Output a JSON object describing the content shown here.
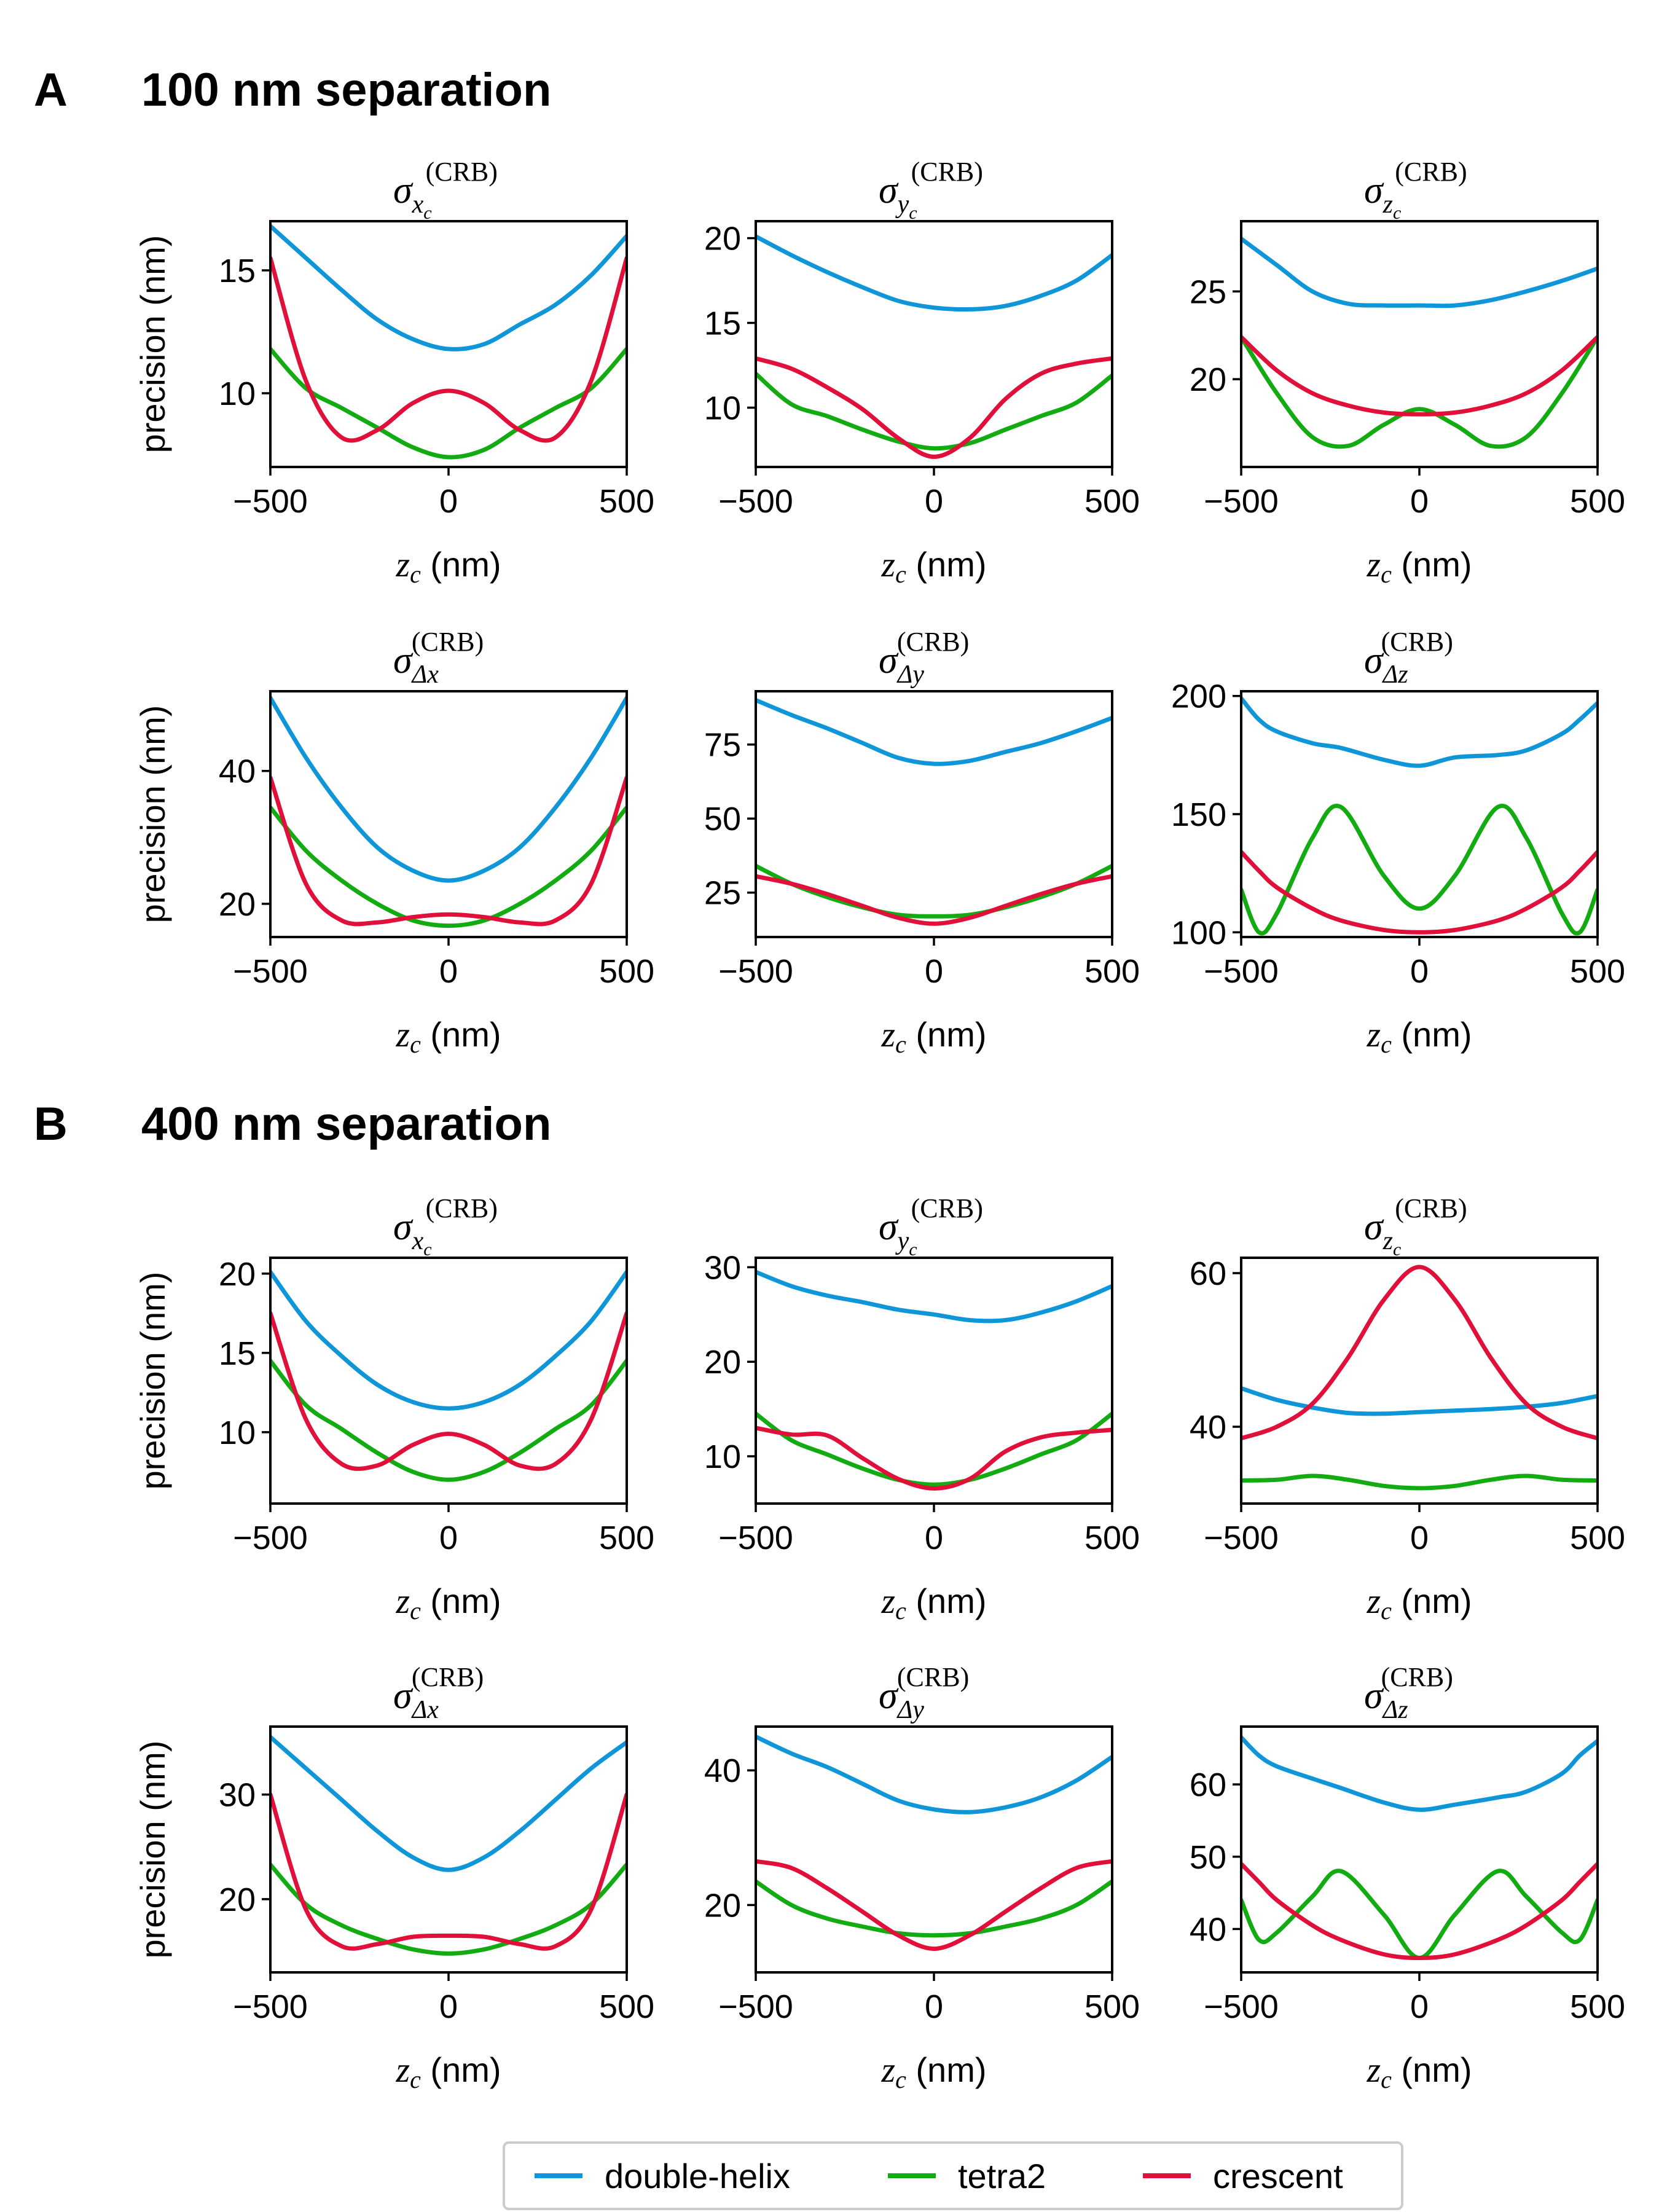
{
  "panels": [
    {
      "letter": "A",
      "title": "100 nm separation"
    },
    {
      "letter": "B",
      "title": "400 nm separation"
    }
  ],
  "axis_text": {
    "ylabel": "precision (nm)",
    "xlabel_var": "z",
    "xlabel_sub": "c",
    "xlabel_unit": " (nm)",
    "title_sup": "(CRB)",
    "title_symbol": "σ"
  },
  "legend": {
    "placement": "bottom-center",
    "entries": [
      {
        "label": "double-helix",
        "color": "#0f96d8"
      },
      {
        "label": "tetra2",
        "color": "#12ab12"
      },
      {
        "label": "crescent",
        "color": "#e0103a"
      }
    ]
  },
  "chart_data": [
    {
      "type": "line",
      "panel": "A",
      "title_sub": "x",
      "title_sub2": "c",
      "xlim": [
        -500,
        500
      ],
      "xticks": [
        -500,
        0,
        500
      ],
      "ylim": [
        7,
        17
      ],
      "yticks": [
        10,
        15
      ],
      "x": [
        -500,
        -400,
        -300,
        -200,
        -100,
        0,
        100,
        200,
        300,
        400,
        500
      ],
      "series": [
        {
          "name": "double-helix",
          "values": [
            16.8,
            15.5,
            14.2,
            13.0,
            12.2,
            11.8,
            12.0,
            12.8,
            13.6,
            14.8,
            16.4
          ]
        },
        {
          "name": "tetra2",
          "values": [
            11.8,
            10.2,
            9.4,
            8.6,
            7.8,
            7.4,
            7.7,
            8.6,
            9.4,
            10.2,
            11.8
          ]
        },
        {
          "name": "crescent",
          "values": [
            15.5,
            10.5,
            8.2,
            8.5,
            9.6,
            10.1,
            9.6,
            8.5,
            8.2,
            10.5,
            15.5
          ]
        }
      ]
    },
    {
      "type": "line",
      "panel": "A",
      "title_sub": "y",
      "title_sub2": "c",
      "xlim": [
        -500,
        500
      ],
      "xticks": [
        -500,
        0,
        500
      ],
      "ylim": [
        6.5,
        21
      ],
      "yticks": [
        10,
        15,
        20
      ],
      "x": [
        -500,
        -400,
        -300,
        -200,
        -100,
        0,
        100,
        200,
        300,
        400,
        500
      ],
      "series": [
        {
          "name": "double-helix",
          "values": [
            20.1,
            19.0,
            18.0,
            17.1,
            16.3,
            15.9,
            15.8,
            16.0,
            16.6,
            17.5,
            19.0
          ]
        },
        {
          "name": "tetra2",
          "values": [
            12.0,
            10.2,
            9.5,
            8.7,
            8.0,
            7.6,
            7.9,
            8.7,
            9.5,
            10.3,
            11.9
          ]
        },
        {
          "name": "crescent",
          "values": [
            12.9,
            12.3,
            11.2,
            9.9,
            8.2,
            7.1,
            8.2,
            10.5,
            12.0,
            12.6,
            12.9
          ]
        }
      ]
    },
    {
      "type": "line",
      "panel": "A",
      "title_sub": "z",
      "title_sub2": "c",
      "xlim": [
        -500,
        500
      ],
      "xticks": [
        -500,
        0,
        500
      ],
      "ylim": [
        15,
        29
      ],
      "yticks": [
        20,
        25
      ],
      "x": [
        -500,
        -400,
        -300,
        -200,
        -100,
        0,
        100,
        200,
        300,
        400,
        500
      ],
      "series": [
        {
          "name": "double-helix",
          "values": [
            28.0,
            26.5,
            25.0,
            24.3,
            24.2,
            24.2,
            24.2,
            24.5,
            25.0,
            25.6,
            26.3
          ]
        },
        {
          "name": "tetra2",
          "values": [
            22.4,
            19.2,
            16.7,
            16.2,
            17.4,
            18.3,
            17.4,
            16.2,
            16.7,
            19.2,
            22.4
          ]
        },
        {
          "name": "crescent",
          "values": [
            22.4,
            20.5,
            19.2,
            18.5,
            18.1,
            18.0,
            18.1,
            18.5,
            19.2,
            20.5,
            22.4
          ]
        }
      ]
    },
    {
      "type": "line",
      "panel": "A",
      "title_sub": "Δx",
      "title_sub2": "",
      "xlim": [
        -500,
        500
      ],
      "xticks": [
        -500,
        0,
        500
      ],
      "ylim": [
        15,
        52
      ],
      "yticks": [
        20,
        40
      ],
      "x": [
        -500,
        -400,
        -300,
        -200,
        -100,
        0,
        100,
        200,
        300,
        400,
        500
      ],
      "series": [
        {
          "name": "double-helix",
          "values": [
            51.0,
            42.0,
            34.5,
            28.5,
            25.0,
            23.5,
            25.0,
            28.5,
            34.5,
            42.0,
            51.0
          ]
        },
        {
          "name": "tetra2",
          "values": [
            34.5,
            28.0,
            23.5,
            20.0,
            17.5,
            16.7,
            17.5,
            20.0,
            23.5,
            28.0,
            34.5
          ]
        },
        {
          "name": "crescent",
          "values": [
            39.0,
            23.0,
            17.5,
            17.2,
            18.0,
            18.4,
            18.0,
            17.2,
            17.5,
            23.0,
            39.0
          ]
        }
      ]
    },
    {
      "type": "line",
      "panel": "A",
      "title_sub": "Δy",
      "title_sub2": "",
      "xlim": [
        -500,
        500
      ],
      "xticks": [
        -500,
        0,
        500
      ],
      "ylim": [
        10,
        93
      ],
      "yticks": [
        25,
        50,
        75
      ],
      "x": [
        -500,
        -400,
        -300,
        -200,
        -100,
        0,
        100,
        200,
        300,
        400,
        500
      ],
      "series": [
        {
          "name": "double-helix",
          "values": [
            90.0,
            85.0,
            80.5,
            75.5,
            70.5,
            68.5,
            69.5,
            72.5,
            75.5,
            79.5,
            84.0
          ]
        },
        {
          "name": "tetra2",
          "values": [
            34.0,
            28.0,
            23.5,
            20.0,
            17.5,
            17.0,
            17.5,
            20.0,
            23.5,
            28.0,
            34.0
          ]
        },
        {
          "name": "crescent",
          "values": [
            30.5,
            28.0,
            24.5,
            20.5,
            16.5,
            14.5,
            16.5,
            20.5,
            24.5,
            28.0,
            30.5
          ]
        }
      ]
    },
    {
      "type": "line",
      "panel": "A",
      "title_sub": "Δz",
      "title_sub2": "",
      "xlim": [
        -500,
        500
      ],
      "xticks": [
        -500,
        0,
        500
      ],
      "ylim": [
        98,
        202
      ],
      "yticks": [
        100,
        150,
        200
      ],
      "x": [
        -500,
        -450,
        -400,
        -300,
        -220,
        -100,
        0,
        100,
        220,
        300,
        400,
        450,
        500
      ],
      "series": [
        {
          "name": "double-helix",
          "values": [
            199.0,
            190.0,
            185.0,
            180.0,
            178.0,
            173.0,
            170.5,
            174.0,
            175.0,
            177.0,
            184.0,
            190.0,
            197.0
          ]
        },
        {
          "name": "tetra2",
          "values": [
            118.0,
            100.0,
            108.0,
            140.0,
            153.0,
            124.0,
            110.0,
            124.0,
            153.0,
            140.0,
            108.0,
            100.0,
            118.0
          ]
        },
        {
          "name": "crescent",
          "values": [
            134.0,
            126.0,
            119.0,
            110.0,
            105.0,
            101.0,
            100.0,
            101.0,
            105.0,
            110.0,
            119.0,
            126.0,
            134.0
          ]
        }
      ]
    },
    {
      "type": "line",
      "panel": "B",
      "title_sub": "x",
      "title_sub2": "c",
      "xlim": [
        -500,
        500
      ],
      "xticks": [
        -500,
        0,
        500
      ],
      "ylim": [
        5.5,
        21
      ],
      "yticks": [
        10,
        15,
        20
      ],
      "x": [
        -500,
        -400,
        -300,
        -200,
        -100,
        0,
        100,
        200,
        300,
        400,
        500
      ],
      "series": [
        {
          "name": "double-helix",
          "values": [
            20.1,
            17.0,
            14.8,
            13.0,
            11.9,
            11.5,
            11.9,
            13.0,
            14.8,
            17.0,
            20.1
          ]
        },
        {
          "name": "tetra2",
          "values": [
            14.5,
            11.7,
            10.2,
            8.7,
            7.5,
            7.0,
            7.5,
            8.7,
            10.2,
            11.7,
            14.5
          ]
        },
        {
          "name": "crescent",
          "values": [
            17.5,
            10.8,
            8.0,
            7.9,
            9.2,
            9.9,
            9.2,
            7.9,
            8.0,
            10.8,
            17.5
          ]
        }
      ]
    },
    {
      "type": "line",
      "panel": "B",
      "title_sub": "y",
      "title_sub2": "c",
      "xlim": [
        -500,
        500
      ],
      "xticks": [
        -500,
        0,
        500
      ],
      "ylim": [
        5,
        31
      ],
      "yticks": [
        10,
        20,
        30
      ],
      "x": [
        -500,
        -400,
        -300,
        -200,
        -100,
        0,
        100,
        200,
        300,
        400,
        500
      ],
      "series": [
        {
          "name": "double-helix",
          "values": [
            29.5,
            28.0,
            27.0,
            26.3,
            25.5,
            25.0,
            24.4,
            24.4,
            25.2,
            26.4,
            28.0
          ]
        },
        {
          "name": "tetra2",
          "values": [
            14.5,
            11.7,
            10.2,
            8.7,
            7.5,
            7.0,
            7.5,
            8.7,
            10.2,
            11.7,
            14.5
          ]
        },
        {
          "name": "crescent",
          "values": [
            13.0,
            12.3,
            12.2,
            9.8,
            7.6,
            6.6,
            7.6,
            10.5,
            12.0,
            12.5,
            12.8
          ]
        }
      ]
    },
    {
      "type": "line",
      "panel": "B",
      "title_sub": "z",
      "title_sub2": "c",
      "xlim": [
        -500,
        500
      ],
      "xticks": [
        -500,
        0,
        500
      ],
      "ylim": [
        30,
        62
      ],
      "yticks": [
        40,
        60
      ],
      "x": [
        -500,
        -400,
        -300,
        -200,
        -100,
        0,
        100,
        200,
        300,
        400,
        500
      ],
      "series": [
        {
          "name": "double-helix",
          "values": [
            45.0,
            43.5,
            42.5,
            41.8,
            41.7,
            41.9,
            42.1,
            42.3,
            42.6,
            43.1,
            44.0
          ]
        },
        {
          "name": "tetra2",
          "values": [
            33.0,
            33.1,
            33.6,
            33.1,
            32.3,
            32.0,
            32.3,
            33.1,
            33.6,
            33.1,
            33.0
          ]
        },
        {
          "name": "crescent",
          "values": [
            38.5,
            40.0,
            43.0,
            49.0,
            56.5,
            60.8,
            56.5,
            49.0,
            43.0,
            40.0,
            38.5
          ]
        }
      ]
    },
    {
      "type": "line",
      "panel": "B",
      "title_sub": "Δx",
      "title_sub2": "",
      "xlim": [
        -500,
        500
      ],
      "xticks": [
        -500,
        0,
        500
      ],
      "ylim": [
        13,
        36.5
      ],
      "yticks": [
        20,
        30
      ],
      "x": [
        -500,
        -400,
        -300,
        -200,
        -100,
        0,
        100,
        200,
        300,
        400,
        500
      ],
      "series": [
        {
          "name": "double-helix",
          "values": [
            35.5,
            32.5,
            29.5,
            26.5,
            24.0,
            22.8,
            24.0,
            26.5,
            29.5,
            32.5,
            35.0
          ]
        },
        {
          "name": "tetra2",
          "values": [
            23.3,
            19.5,
            17.5,
            16.2,
            15.2,
            14.8,
            15.2,
            16.2,
            17.5,
            19.5,
            23.3
          ]
        },
        {
          "name": "crescent",
          "values": [
            30.0,
            19.0,
            15.5,
            15.7,
            16.4,
            16.5,
            16.4,
            15.7,
            15.5,
            19.0,
            30.0
          ]
        }
      ]
    },
    {
      "type": "line",
      "panel": "B",
      "title_sub": "Δy",
      "title_sub2": "",
      "xlim": [
        -500,
        500
      ],
      "xticks": [
        -500,
        0,
        500
      ],
      "ylim": [
        10,
        46.5
      ],
      "yticks": [
        20,
        40
      ],
      "x": [
        -500,
        -400,
        -300,
        -200,
        -100,
        0,
        100,
        200,
        300,
        400,
        500
      ],
      "series": [
        {
          "name": "double-helix",
          "values": [
            45.0,
            42.5,
            40.5,
            38.0,
            35.5,
            34.2,
            33.8,
            34.5,
            36.0,
            38.5,
            42.0
          ]
        },
        {
          "name": "tetra2",
          "values": [
            23.5,
            20.0,
            18.0,
            16.8,
            15.8,
            15.5,
            15.8,
            16.8,
            18.0,
            20.0,
            23.5
          ]
        },
        {
          "name": "crescent",
          "values": [
            26.5,
            25.5,
            22.5,
            19.0,
            15.5,
            13.5,
            15.5,
            19.0,
            22.5,
            25.5,
            26.5
          ]
        }
      ]
    },
    {
      "type": "line",
      "panel": "B",
      "title_sub": "Δz",
      "title_sub2": "",
      "xlim": [
        -500,
        500
      ],
      "xticks": [
        -500,
        0,
        500
      ],
      "ylim": [
        34,
        68
      ],
      "yticks": [
        40,
        50,
        60
      ],
      "x": [
        -500,
        -450,
        -400,
        -300,
        -220,
        -100,
        0,
        100,
        220,
        300,
        400,
        450,
        500
      ],
      "series": [
        {
          "name": "double-helix",
          "values": [
            66.5,
            64.0,
            62.5,
            60.8,
            59.5,
            57.5,
            56.5,
            57.2,
            58.2,
            59.0,
            61.5,
            64.0,
            66.0
          ]
        },
        {
          "name": "tetra2",
          "values": [
            44.0,
            38.5,
            39.5,
            44.5,
            48.0,
            42.0,
            36.0,
            42.0,
            48.0,
            44.5,
            39.5,
            38.5,
            44.0
          ]
        },
        {
          "name": "crescent",
          "values": [
            49.0,
            46.5,
            44.0,
            40.5,
            38.5,
            36.5,
            36.0,
            36.5,
            38.5,
            40.5,
            44.0,
            46.5,
            49.0
          ]
        }
      ]
    }
  ]
}
